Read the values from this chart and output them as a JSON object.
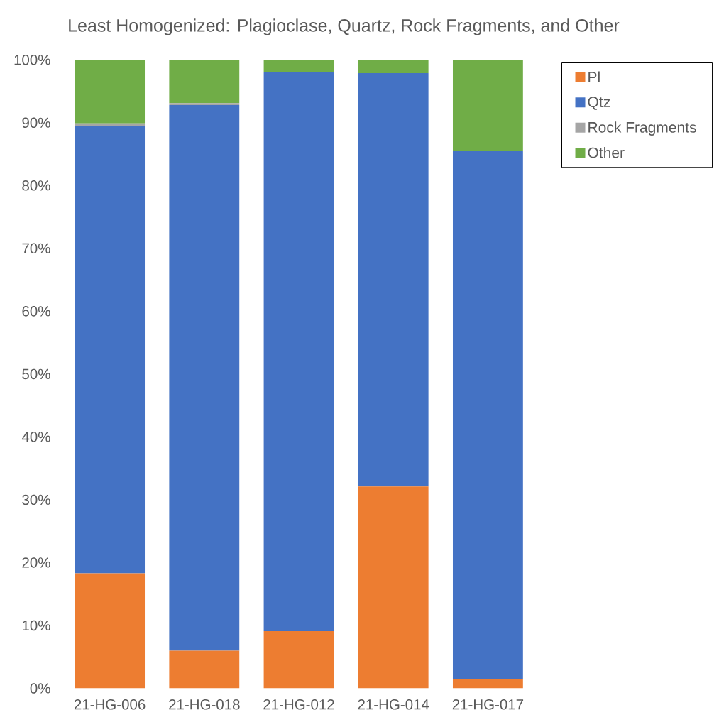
{
  "chart_data": {
    "type": "bar",
    "stacked": true,
    "title": "Least Homogenized: Plagioclase, Quartz, Rock Fragments, and Other",
    "categories": [
      "21-HG-006",
      "21-HG-018",
      "21-HG-012",
      "21-HG-014",
      "21-HG-017"
    ],
    "series": [
      {
        "name": "Pl",
        "color": "#ed7d31",
        "values": [
          18.3,
          6.0,
          9.1,
          32.1,
          1.5
        ]
      },
      {
        "name": "Qtz",
        "color": "#4472c4",
        "values": [
          71.2,
          86.8,
          88.9,
          65.8,
          84.0
        ]
      },
      {
        "name": "Rock Fragments",
        "color": "#a5a5a5",
        "values": [
          0.4,
          0.3,
          0,
          0,
          0
        ]
      },
      {
        "name": "Other",
        "color": "#70ad47",
        "values": [
          10.1,
          6.9,
          2.0,
          2.1,
          14.5
        ]
      }
    ],
    "ylim": [
      0,
      100
    ],
    "yticks": [
      {
        "value": 0,
        "label": "0%"
      },
      {
        "value": 10,
        "label": "10%"
      },
      {
        "value": 20,
        "label": "20%"
      },
      {
        "value": 30,
        "label": "30%"
      },
      {
        "value": 40,
        "label": "40%"
      },
      {
        "value": 50,
        "label": "50%"
      },
      {
        "value": 60,
        "label": "60%"
      },
      {
        "value": 70,
        "label": "70%"
      },
      {
        "value": 80,
        "label": "80%"
      },
      {
        "value": 90,
        "label": "90%"
      },
      {
        "value": 100,
        "label": "100%"
      }
    ],
    "legend": "top right"
  }
}
